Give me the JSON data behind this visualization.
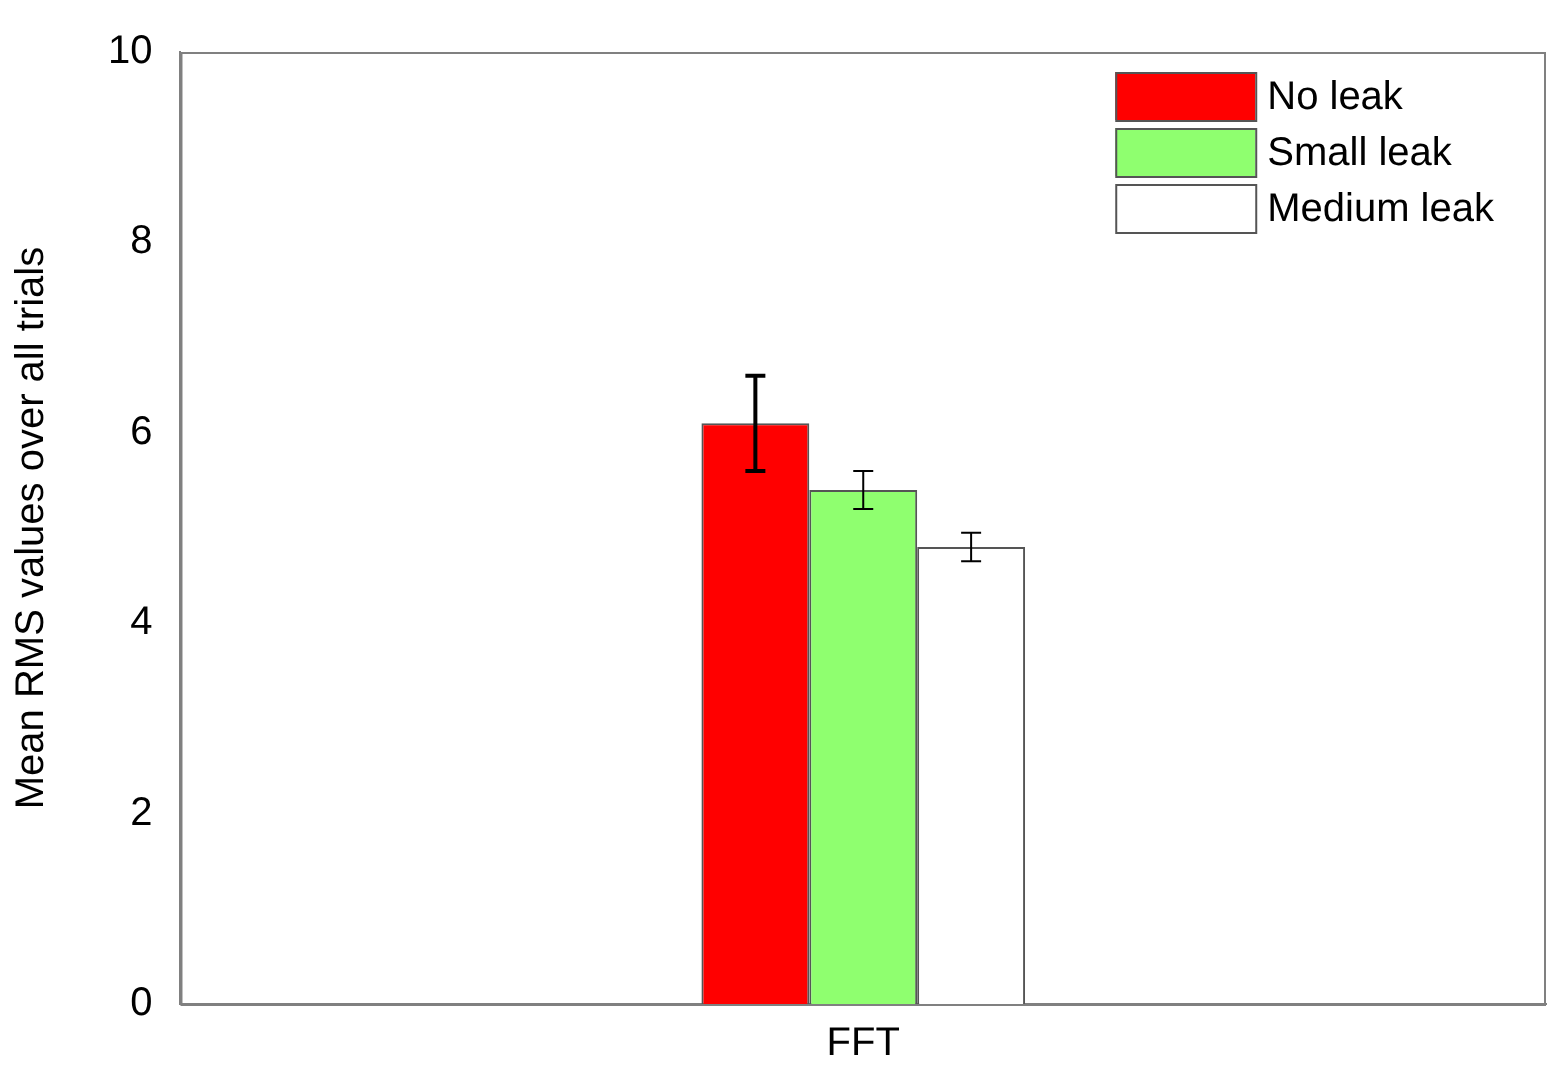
{
  "chart_data": {
    "type": "bar",
    "ylabel": "Mean RMS values over all trials",
    "categories": [
      "FFT"
    ],
    "series": [
      {
        "name": "No leak",
        "color": "#ff0000",
        "values": [
          6.1
        ],
        "errors": [
          0.5
        ]
      },
      {
        "name": "Small leak",
        "color": "#8fff6f",
        "values": [
          5.4
        ],
        "errors": [
          0.2
        ]
      },
      {
        "name": "Medium leak",
        "color": "#ffffff",
        "values": [
          4.8
        ],
        "errors": [
          0.15
        ]
      }
    ],
    "ylim": [
      0,
      10
    ],
    "yticks": [
      0,
      2,
      4,
      6,
      8,
      10
    ],
    "grid": false,
    "legend": "top right"
  }
}
